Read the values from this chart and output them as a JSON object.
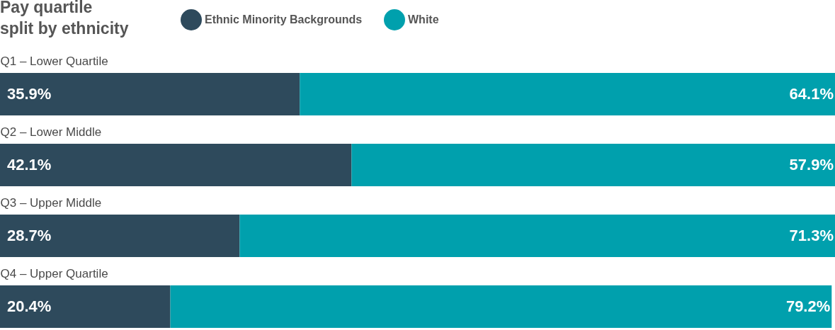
{
  "chart_data": {
    "type": "bar",
    "title": "Pay quartile split by ethnicity",
    "orientation": "horizontal",
    "stacked": true,
    "categories": [
      "Q1 – Lower Quartile",
      "Q2 – Lower Middle",
      "Q3 – Upper Middle",
      "Q4 – Upper Quartile"
    ],
    "series": [
      {
        "name": "Ethnic Minority Backgrounds",
        "color": "#2e4a5c",
        "values": [
          35.9,
          42.1,
          28.7,
          20.4
        ],
        "value_labels": [
          "35.9%",
          "42.1%",
          "28.7%",
          "20.4%"
        ]
      },
      {
        "name": "White",
        "color": "#00a0ad",
        "values": [
          64.1,
          57.9,
          71.3,
          79.2
        ],
        "value_labels": [
          "64.1%",
          "57.9%",
          "71.3%",
          "79.2%"
        ]
      }
    ],
    "xlim": [
      0,
      100
    ],
    "tick_labels": "y",
    "grid": false,
    "legend": "top"
  }
}
